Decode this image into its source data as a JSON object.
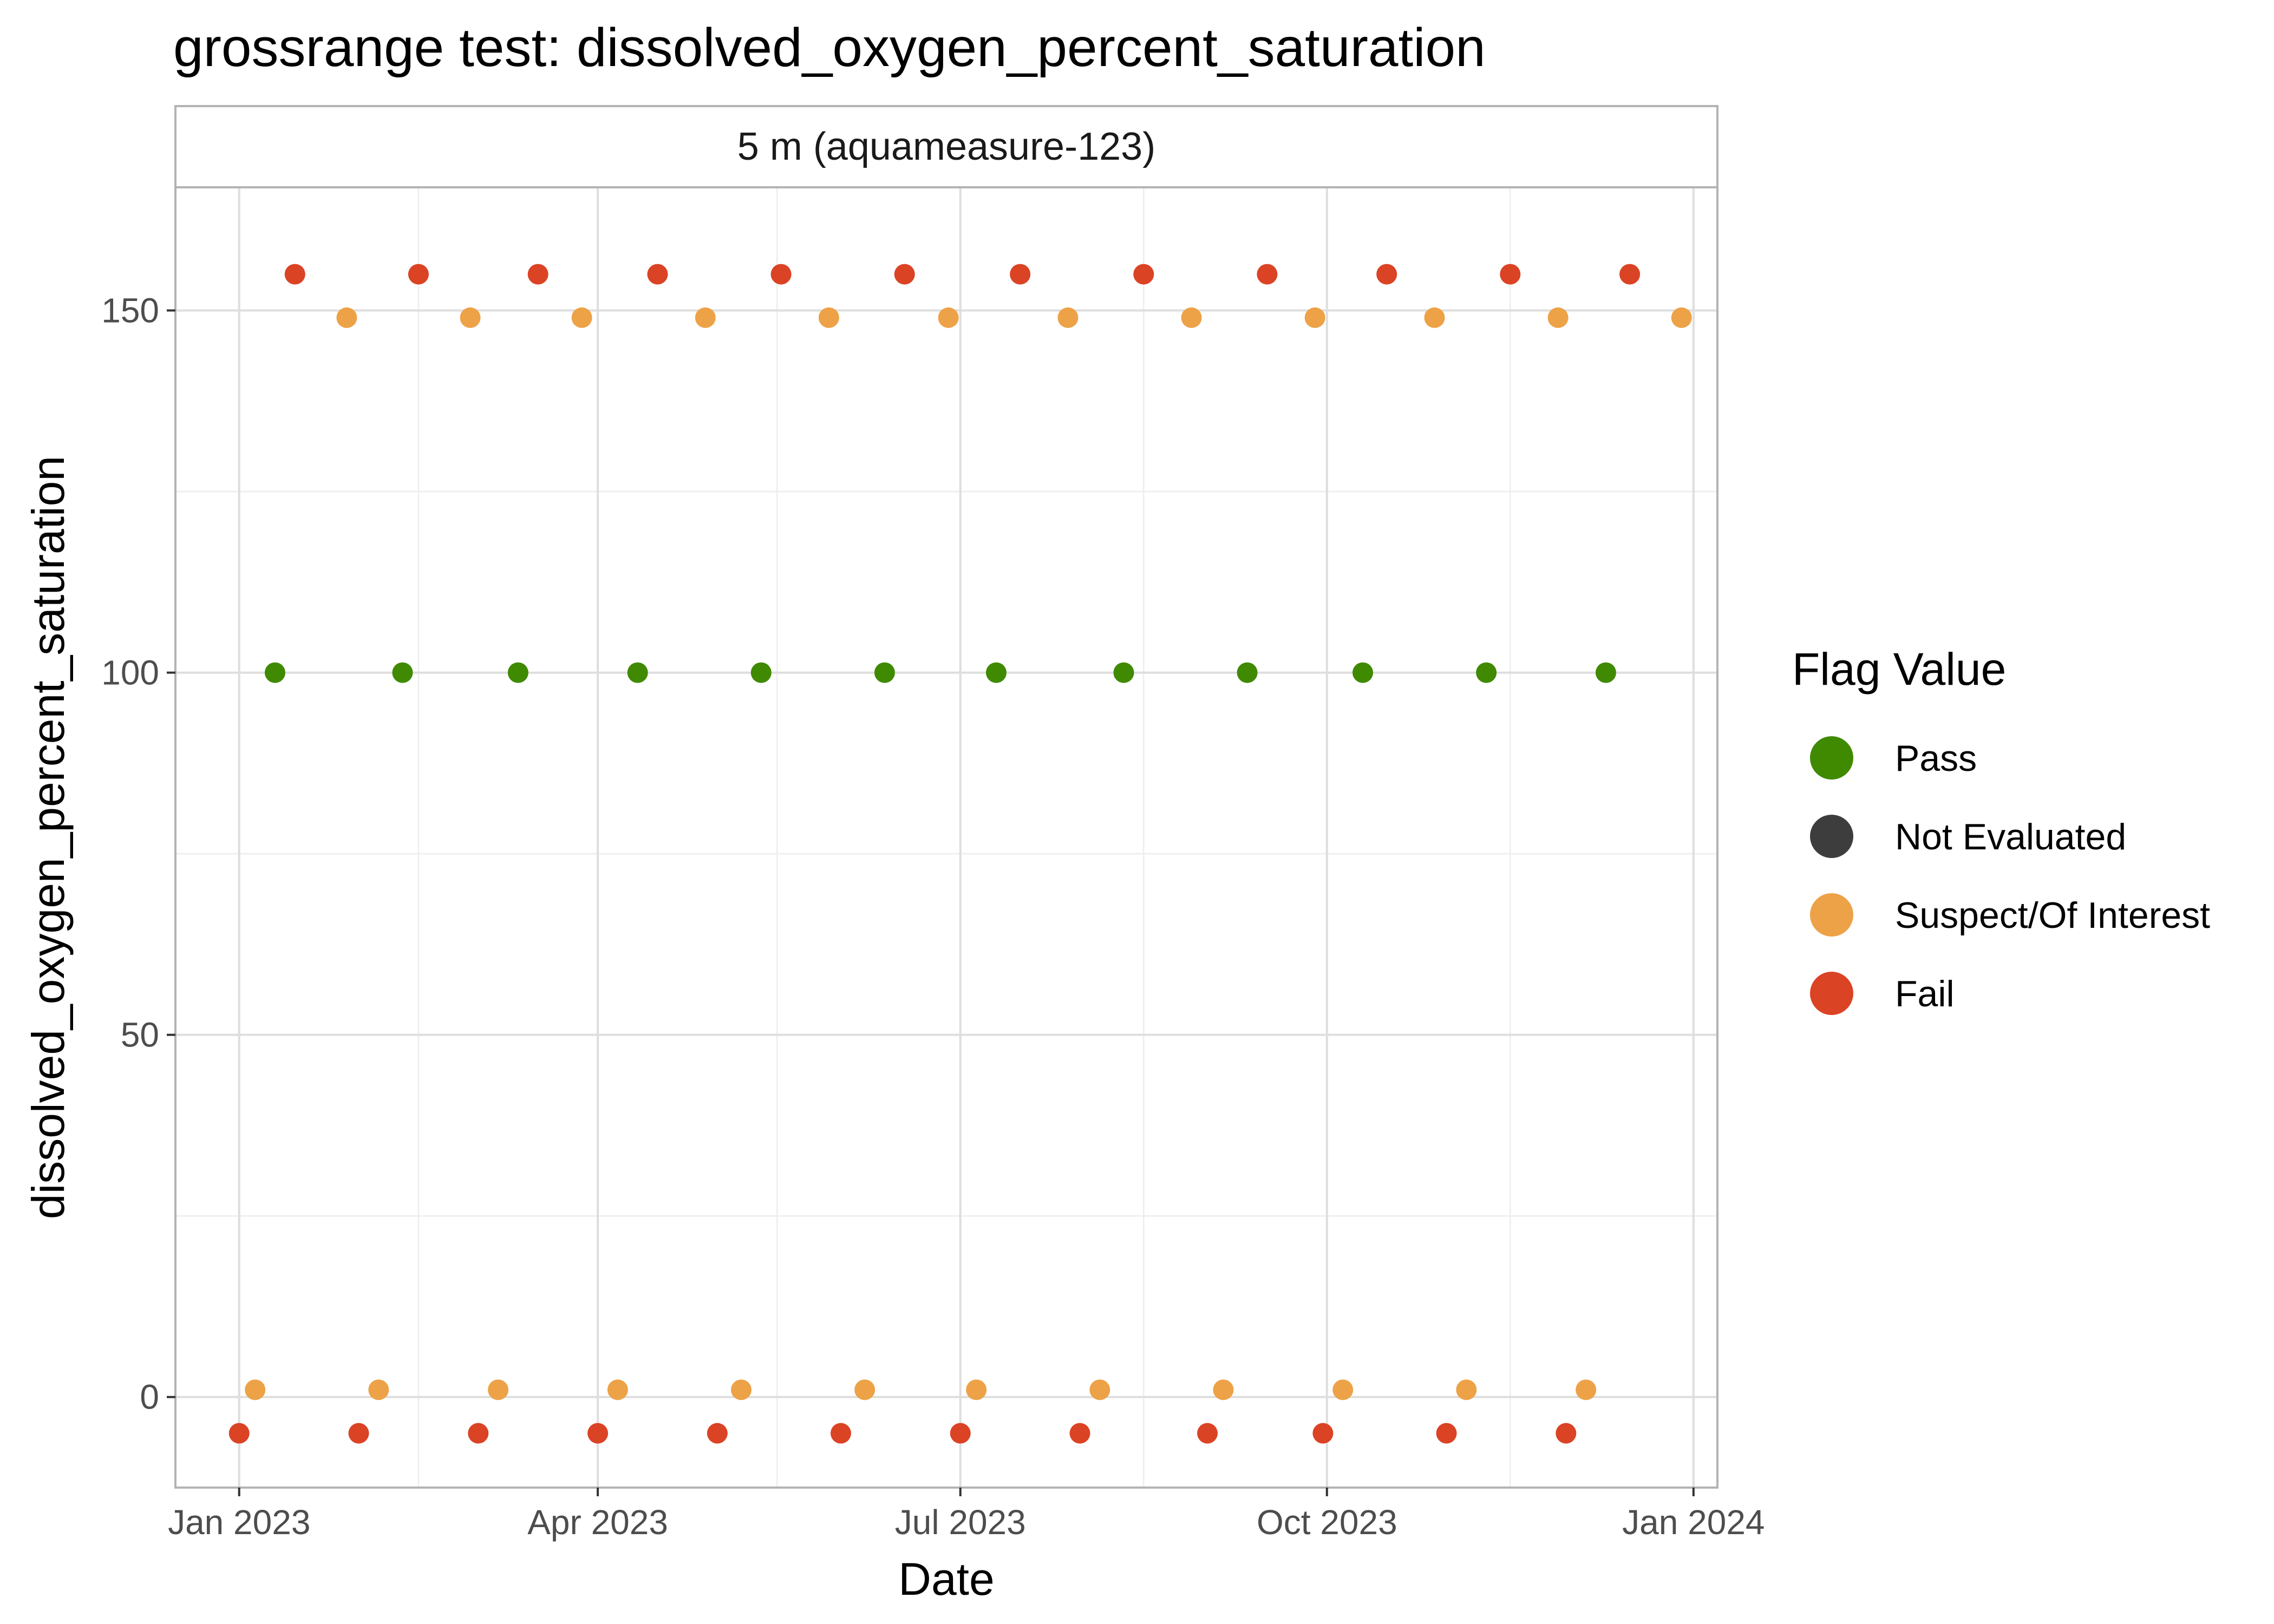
{
  "chart_data": {
    "type": "scatter",
    "title": "grossrange test: dissolved_oxygen_percent_saturation",
    "facet_label": "5 m (aquameasure-123)",
    "xlabel": "Date",
    "ylabel": "dissolved_oxygen_percent_saturation",
    "xlim": [
      "2022-12-16",
      "2024-01-07"
    ],
    "ylim": [
      -12.5,
      167
    ],
    "x_ticks": [
      {
        "date": "2023-01-01",
        "label": "Jan 2023"
      },
      {
        "date": "2023-04-01",
        "label": "Apr 2023"
      },
      {
        "date": "2023-07-01",
        "label": "Jul 2023"
      },
      {
        "date": "2023-10-01",
        "label": "Oct 2023"
      },
      {
        "date": "2024-01-01",
        "label": "Jan 2024"
      }
    ],
    "x_minor_ticks": [
      "2023-02-15",
      "2023-05-16",
      "2023-08-16",
      "2023-11-16"
    ],
    "y_ticks": [
      0,
      50,
      100,
      150
    ],
    "y_minor_ticks": [
      25,
      75,
      125
    ],
    "grid": true,
    "legend": {
      "title": "Flag Value",
      "position": "right",
      "entries": [
        {
          "label": "Pass",
          "color": "#3F8A00"
        },
        {
          "label": "Not Evaluated",
          "color": "#3D3D3D"
        },
        {
          "label": "Suspect/Of Interest",
          "color": "#EDA247"
        },
        {
          "label": "Fail",
          "color": "#DB4325"
        }
      ]
    },
    "series": [
      {
        "name": "Pass",
        "color": "#3F8A00",
        "points": [
          {
            "x": "2023-01-10",
            "y": 100
          },
          {
            "x": "2023-02-11",
            "y": 100
          },
          {
            "x": "2023-03-12",
            "y": 100
          },
          {
            "x": "2023-04-11",
            "y": 100
          },
          {
            "x": "2023-05-12",
            "y": 100
          },
          {
            "x": "2023-06-12",
            "y": 100
          },
          {
            "x": "2023-07-10",
            "y": 100
          },
          {
            "x": "2023-08-11",
            "y": 100
          },
          {
            "x": "2023-09-11",
            "y": 100
          },
          {
            "x": "2023-10-10",
            "y": 100
          },
          {
            "x": "2023-11-10",
            "y": 100
          },
          {
            "x": "2023-12-10",
            "y": 100
          }
        ]
      },
      {
        "name": "Not Evaluated",
        "color": "#3D3D3D",
        "points": []
      },
      {
        "name": "Suspect/Of Interest",
        "color": "#EDA247",
        "points": [
          {
            "x": "2023-01-05",
            "y": 1
          },
          {
            "x": "2023-02-05",
            "y": 1
          },
          {
            "x": "2023-03-07",
            "y": 1
          },
          {
            "x": "2023-04-06",
            "y": 1
          },
          {
            "x": "2023-05-07",
            "y": 1
          },
          {
            "x": "2023-06-07",
            "y": 1
          },
          {
            "x": "2023-07-05",
            "y": 1
          },
          {
            "x": "2023-08-05",
            "y": 1
          },
          {
            "x": "2023-09-05",
            "y": 1
          },
          {
            "x": "2023-10-05",
            "y": 1
          },
          {
            "x": "2023-11-05",
            "y": 1
          },
          {
            "x": "2023-12-05",
            "y": 1
          },
          {
            "x": "2023-01-28",
            "y": 149
          },
          {
            "x": "2023-02-28",
            "y": 149
          },
          {
            "x": "2023-03-28",
            "y": 149
          },
          {
            "x": "2023-04-28",
            "y": 149
          },
          {
            "x": "2023-05-29",
            "y": 149
          },
          {
            "x": "2023-06-28",
            "y": 149
          },
          {
            "x": "2023-07-28",
            "y": 149
          },
          {
            "x": "2023-08-28",
            "y": 149
          },
          {
            "x": "2023-09-28",
            "y": 149
          },
          {
            "x": "2023-10-28",
            "y": 149
          },
          {
            "x": "2023-11-28",
            "y": 149
          },
          {
            "x": "2023-12-29",
            "y": 149
          }
        ]
      },
      {
        "name": "Fail",
        "color": "#DB4325",
        "points": [
          {
            "x": "2023-01-01",
            "y": -5
          },
          {
            "x": "2023-01-31",
            "y": -5
          },
          {
            "x": "2023-03-02",
            "y": -5
          },
          {
            "x": "2023-04-01",
            "y": -5
          },
          {
            "x": "2023-05-01",
            "y": -5
          },
          {
            "x": "2023-06-01",
            "y": -5
          },
          {
            "x": "2023-07-01",
            "y": -5
          },
          {
            "x": "2023-07-31",
            "y": -5
          },
          {
            "x": "2023-09-01",
            "y": -5
          },
          {
            "x": "2023-09-30",
            "y": -5
          },
          {
            "x": "2023-10-31",
            "y": -5
          },
          {
            "x": "2023-11-30",
            "y": -5
          },
          {
            "x": "2023-01-15",
            "y": 155
          },
          {
            "x": "2023-02-15",
            "y": 155
          },
          {
            "x": "2023-03-17",
            "y": 155
          },
          {
            "x": "2023-04-16",
            "y": 155
          },
          {
            "x": "2023-05-17",
            "y": 155
          },
          {
            "x": "2023-06-17",
            "y": 155
          },
          {
            "x": "2023-07-16",
            "y": 155
          },
          {
            "x": "2023-08-16",
            "y": 155
          },
          {
            "x": "2023-09-16",
            "y": 155
          },
          {
            "x": "2023-10-16",
            "y": 155
          },
          {
            "x": "2023-11-16",
            "y": 155
          },
          {
            "x": "2023-12-16",
            "y": 155
          }
        ]
      }
    ]
  }
}
